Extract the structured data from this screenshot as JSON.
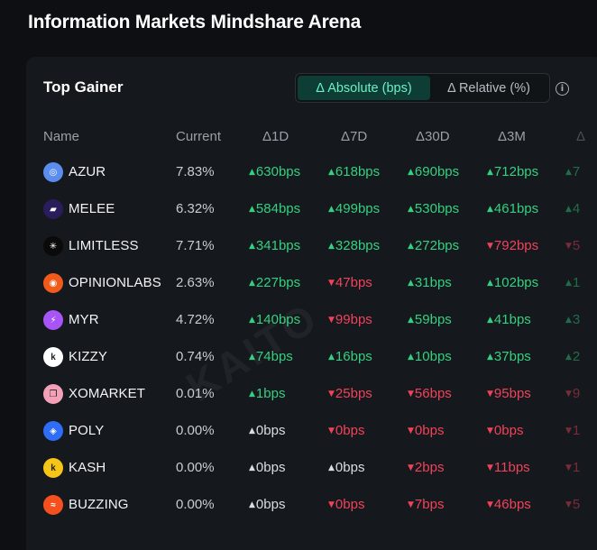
{
  "page": {
    "title": "Information Markets Mindshare Arena"
  },
  "card": {
    "title": "Top Gainer",
    "toggle": {
      "absolute_label": "Δ Absolute (bps)",
      "relative_label": "Δ Relative (%)",
      "active": "absolute"
    },
    "info_icon": "info-icon"
  },
  "watermark": "KAITO",
  "table": {
    "columns": [
      "Name",
      "Current",
      "Δ1D",
      "Δ7D",
      "Δ30D",
      "Δ3M",
      "Δ"
    ],
    "rows": [
      {
        "name": "AZUR",
        "icon": "azur-icon",
        "color": "#5b8def",
        "current": "7.83%",
        "deltas": [
          {
            "text": "630bps",
            "dir": "up"
          },
          {
            "text": "618bps",
            "dir": "up"
          },
          {
            "text": "690bps",
            "dir": "up"
          },
          {
            "text": "712bps",
            "dir": "up"
          },
          {
            "text": "7",
            "dir": "up"
          }
        ]
      },
      {
        "name": "MELEE",
        "icon": "melee-icon",
        "color": "#2a1d5c",
        "current": "6.32%",
        "deltas": [
          {
            "text": "584bps",
            "dir": "up"
          },
          {
            "text": "499bps",
            "dir": "up"
          },
          {
            "text": "530bps",
            "dir": "up"
          },
          {
            "text": "461bps",
            "dir": "up"
          },
          {
            "text": "4",
            "dir": "up"
          }
        ]
      },
      {
        "name": "LIMITLESS",
        "icon": "limitless-icon",
        "color": "#0a0a0a",
        "current": "7.71%",
        "deltas": [
          {
            "text": "341bps",
            "dir": "up"
          },
          {
            "text": "328bps",
            "dir": "up"
          },
          {
            "text": "272bps",
            "dir": "up"
          },
          {
            "text": "792bps",
            "dir": "down"
          },
          {
            "text": "5",
            "dir": "down"
          }
        ]
      },
      {
        "name": "OPINIONLABS",
        "icon": "opinionlabs-icon",
        "color": "#f05a1a",
        "current": "2.63%",
        "deltas": [
          {
            "text": "227bps",
            "dir": "up"
          },
          {
            "text": "47bps",
            "dir": "down"
          },
          {
            "text": "31bps",
            "dir": "up"
          },
          {
            "text": "102bps",
            "dir": "up"
          },
          {
            "text": "1",
            "dir": "up"
          }
        ]
      },
      {
        "name": "MYR",
        "icon": "myr-icon",
        "color": "#a855f7",
        "current": "4.72%",
        "deltas": [
          {
            "text": "140bps",
            "dir": "up"
          },
          {
            "text": "99bps",
            "dir": "down"
          },
          {
            "text": "59bps",
            "dir": "up"
          },
          {
            "text": "41bps",
            "dir": "up"
          },
          {
            "text": "3",
            "dir": "up"
          }
        ]
      },
      {
        "name": "KIZZY",
        "icon": "kizzy-icon",
        "color": "#ffffff",
        "current": "0.74%",
        "deltas": [
          {
            "text": "74bps",
            "dir": "up"
          },
          {
            "text": "16bps",
            "dir": "up"
          },
          {
            "text": "10bps",
            "dir": "up"
          },
          {
            "text": "37bps",
            "dir": "up"
          },
          {
            "text": "2",
            "dir": "up"
          }
        ]
      },
      {
        "name": "XOMARKET",
        "icon": "xomarket-icon",
        "color": "#f2a1b8",
        "current": "0.01%",
        "deltas": [
          {
            "text": "1bps",
            "dir": "up"
          },
          {
            "text": "25bps",
            "dir": "down"
          },
          {
            "text": "56bps",
            "dir": "down"
          },
          {
            "text": "95bps",
            "dir": "down"
          },
          {
            "text": "9",
            "dir": "down"
          }
        ]
      },
      {
        "name": "POLY",
        "icon": "poly-icon",
        "color": "#2f6df6",
        "current": "0.00%",
        "deltas": [
          {
            "text": "0bps",
            "dir": "flat"
          },
          {
            "text": "0bps",
            "dir": "down"
          },
          {
            "text": "0bps",
            "dir": "down"
          },
          {
            "text": "0bps",
            "dir": "down"
          },
          {
            "text": "1",
            "dir": "down"
          }
        ]
      },
      {
        "name": "KASH",
        "icon": "kash-icon",
        "color": "#f5c518",
        "current": "0.00%",
        "deltas": [
          {
            "text": "0bps",
            "dir": "flat"
          },
          {
            "text": "0bps",
            "dir": "flat"
          },
          {
            "text": "2bps",
            "dir": "down"
          },
          {
            "text": "11bps",
            "dir": "down"
          },
          {
            "text": "1",
            "dir": "down"
          }
        ]
      },
      {
        "name": "BUZZING",
        "icon": "buzzing-icon",
        "color": "#f4501e",
        "current": "0.00%",
        "deltas": [
          {
            "text": "0bps",
            "dir": "flat"
          },
          {
            "text": "0bps",
            "dir": "down"
          },
          {
            "text": "7bps",
            "dir": "down"
          },
          {
            "text": "46bps",
            "dir": "down"
          },
          {
            "text": "5",
            "dir": "down"
          }
        ]
      }
    ]
  }
}
